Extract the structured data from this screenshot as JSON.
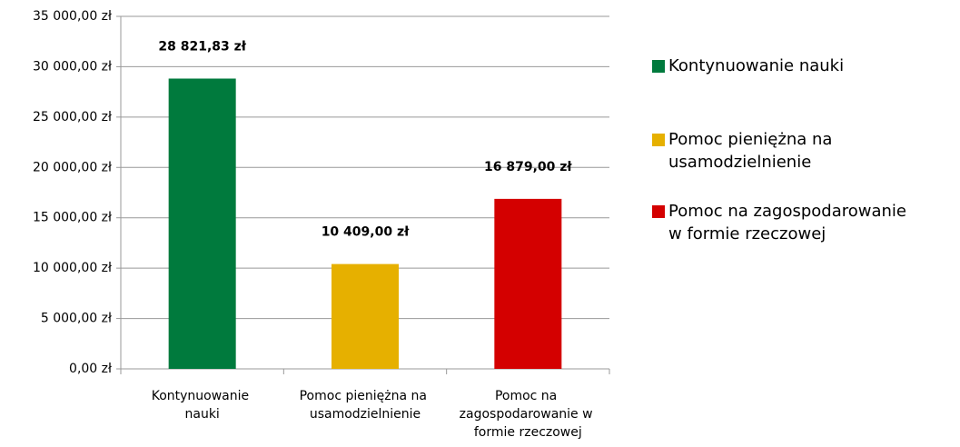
{
  "chart_data": {
    "type": "bar",
    "categories": [
      "Kontynuowanie nauki",
      "Pomoc pieniężna na usamodzielnienie",
      "Pomoc na zagospodarowanie w formie rzeczowej"
    ],
    "values": [
      28821.83,
      10409,
      16879
    ],
    "value_labels": [
      "28 821,83 zł",
      "10 409,00 zł",
      "16 879,00 zł"
    ],
    "colors": [
      "#007a3d",
      "#e6b000",
      "#d40000"
    ],
    "ylim": [
      0,
      35000
    ],
    "yticks": [
      {
        "value": 0,
        "label": "0,00 zł"
      },
      {
        "value": 5000,
        "label": "5 000,00 zł"
      },
      {
        "value": 10000,
        "label": "10 000,00 zł"
      },
      {
        "value": 15000,
        "label": "15 000,00 zł"
      },
      {
        "value": 20000,
        "label": "20 000,00 zł"
      },
      {
        "value": 25000,
        "label": "25 000,00 zł"
      },
      {
        "value": 30000,
        "label": "30 000,00 zł"
      },
      {
        "value": 35000,
        "label": "35 000,00 zł"
      }
    ],
    "grid": true,
    "legend": "right"
  }
}
